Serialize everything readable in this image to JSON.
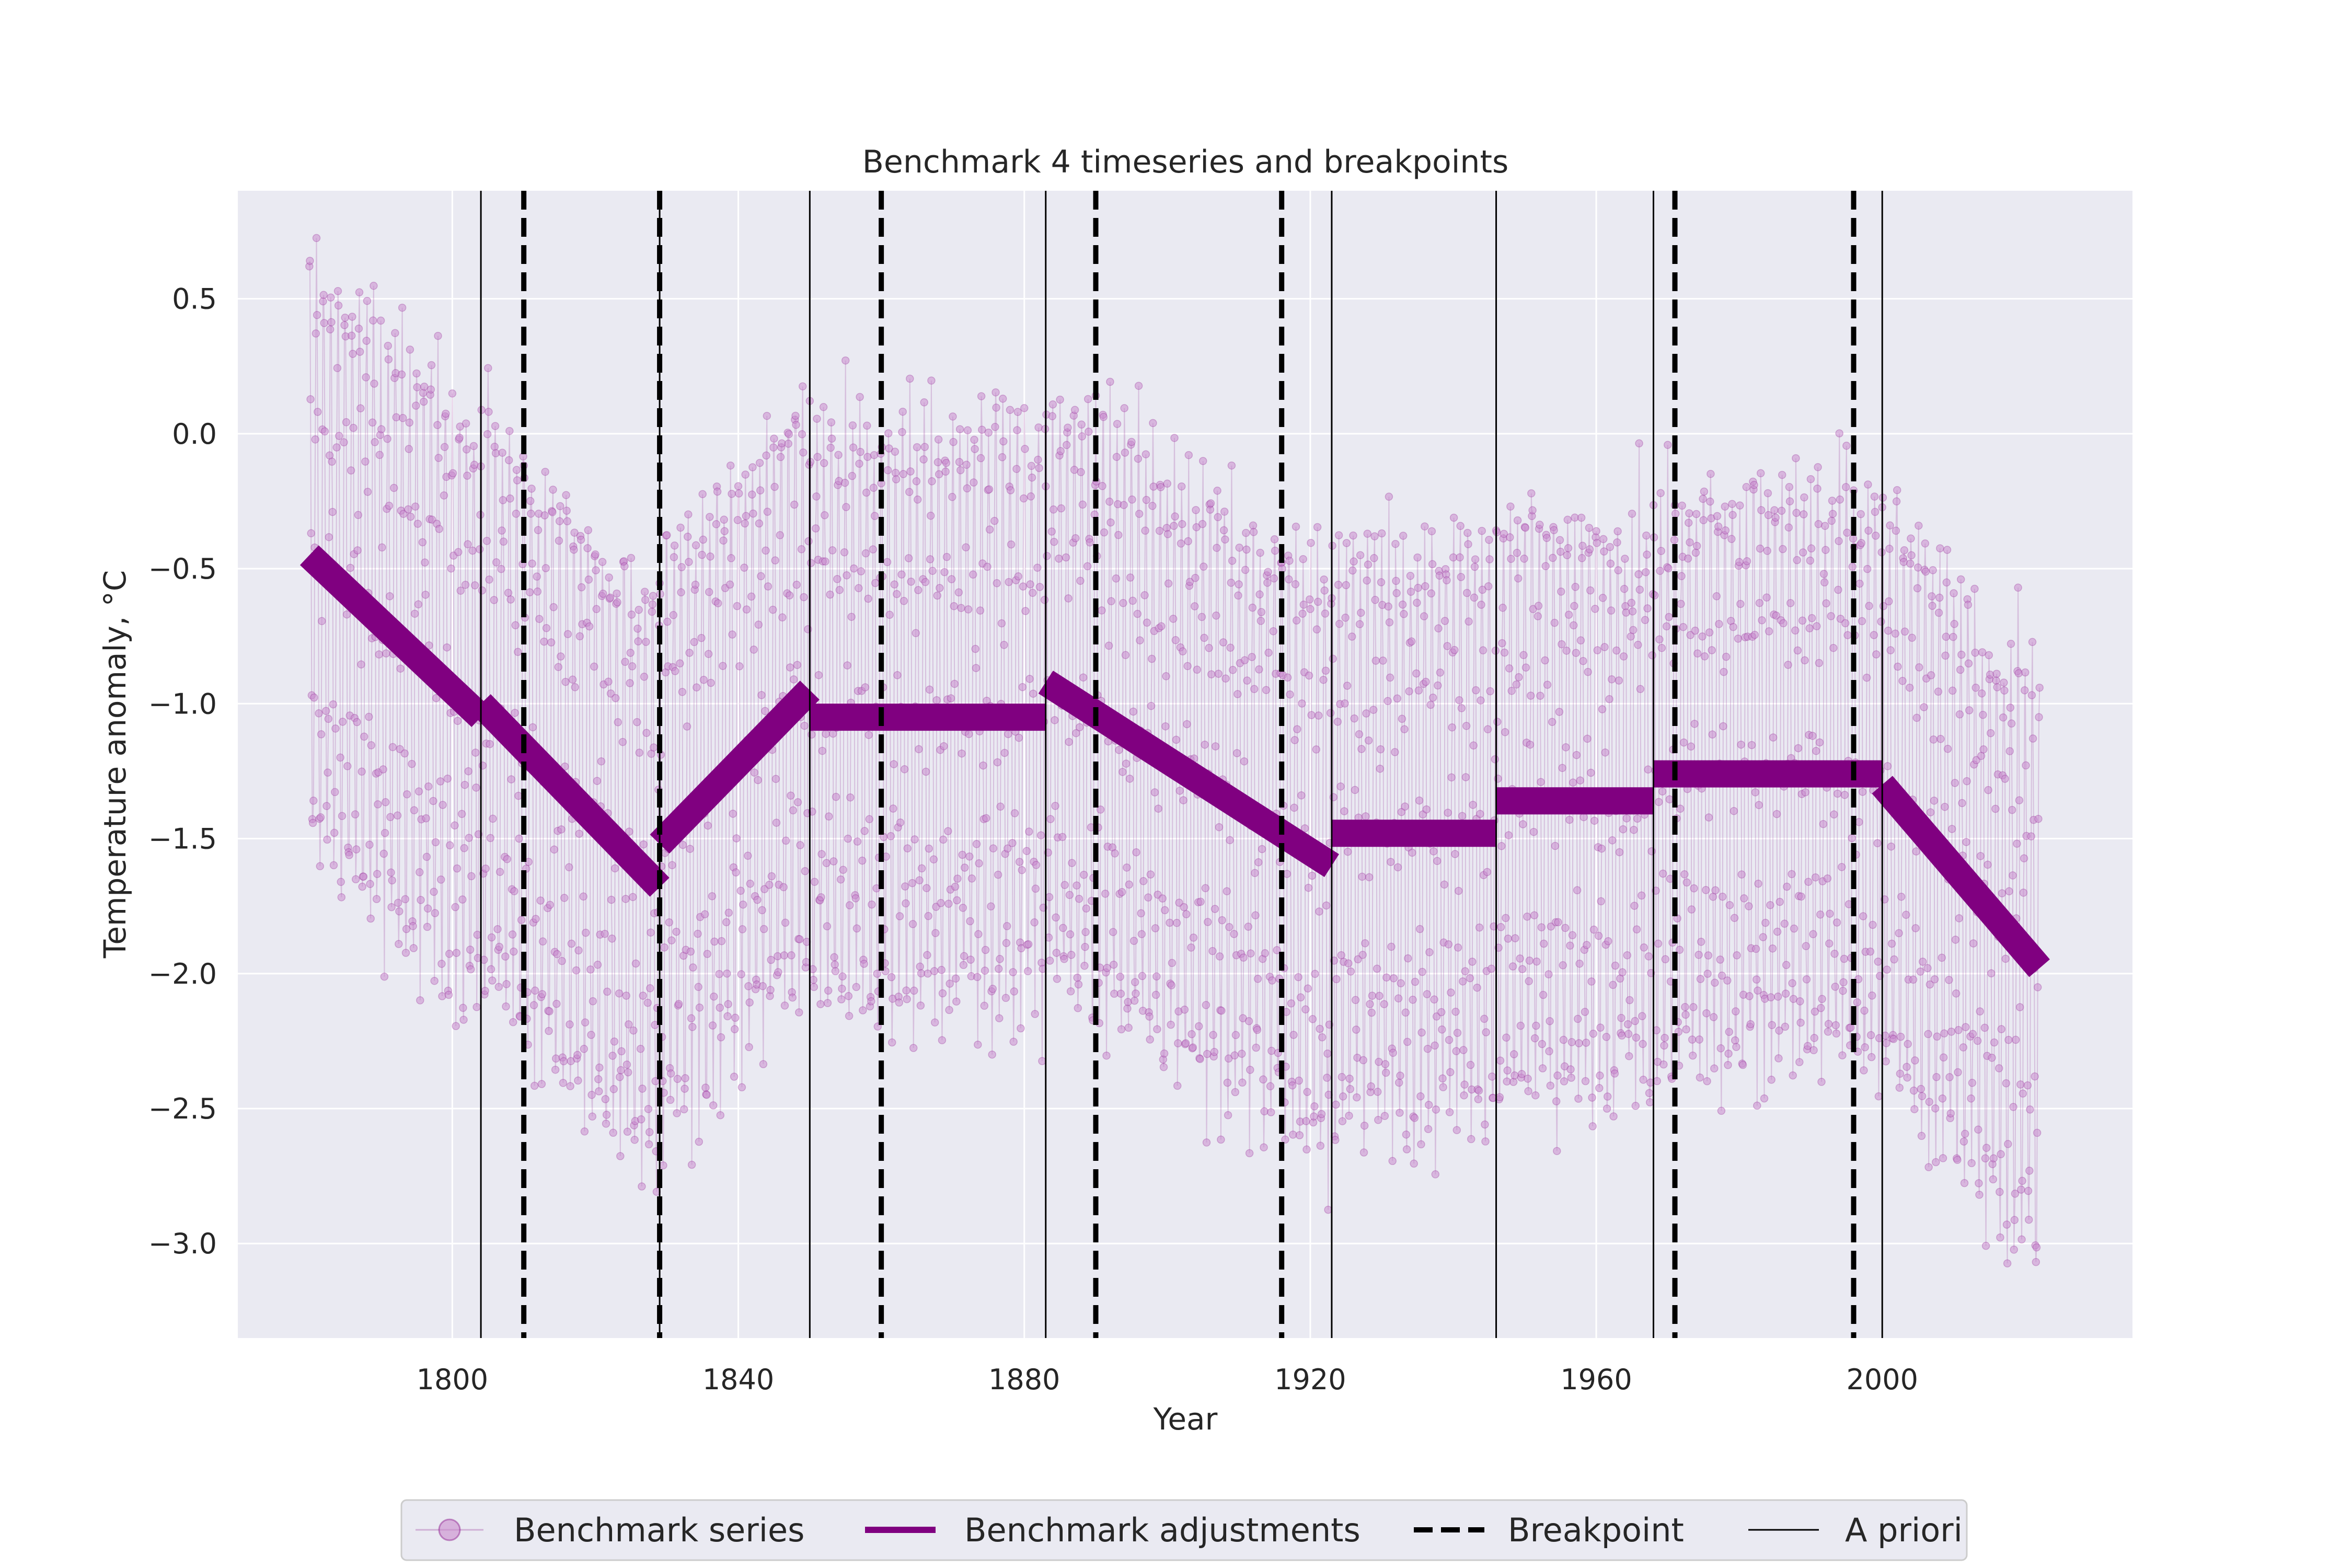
{
  "chart_data": {
    "type": "line",
    "title": "Benchmark 4 timeseries and breakpoints",
    "xlabel": "Year",
    "ylabel": "Temperature anomaly, °C",
    "xlim": [
      1770,
      2035
    ],
    "ylim": [
      -3.35,
      0.9
    ],
    "x_ticks": [
      1800,
      1840,
      1880,
      1920,
      1960,
      2000
    ],
    "y_ticks": [
      0.5,
      0.0,
      -0.5,
      -1.0,
      -1.5,
      -2.0,
      -2.5,
      -3.0
    ],
    "y_tick_labels": [
      "0.5",
      "0.0",
      "−0.5",
      "−1.0",
      "−1.5",
      "−2.0",
      "−2.5",
      "−3.0"
    ],
    "grid": true,
    "legend_position": "bottom-center",
    "series_color": "#800080",
    "point_color": "#c98bcd",
    "legend": [
      {
        "label": "Benchmark series",
        "style": "marker-line"
      },
      {
        "label": "Benchmark adjustments",
        "style": "thick-line"
      },
      {
        "label": "Breakpoint",
        "style": "dashed-line"
      },
      {
        "label": "A priori",
        "style": "thin-line"
      }
    ],
    "breakpoints": [
      1810,
      1829,
      1860,
      1890,
      1916,
      1971,
      1996
    ],
    "a_priori": [
      1804,
      1829,
      1850,
      1883,
      1923,
      1946,
      1968,
      2000
    ],
    "benchmark_series": {
      "start": 1780,
      "end": 2022,
      "seasonal_amplitude": 1.05,
      "noise": 0.18
    },
    "benchmark_adjustments": [
      {
        "x": [
          1780,
          1804
        ],
        "y": [
          -0.45,
          -1.05
        ]
      },
      {
        "x": [
          1804,
          1829
        ],
        "y": [
          -1.0,
          -1.68
        ]
      },
      {
        "x": [
          1829,
          1850
        ],
        "y": [
          -1.52,
          -0.95
        ]
      },
      {
        "x": [
          1850,
          1883
        ],
        "y": [
          -1.05,
          -1.05
        ]
      },
      {
        "x": [
          1883,
          1923
        ],
        "y": [
          -0.92,
          -1.6
        ]
      },
      {
        "x": [
          1923,
          1946
        ],
        "y": [
          -1.48,
          -1.48
        ]
      },
      {
        "x": [
          1946,
          1968
        ],
        "y": [
          -1.36,
          -1.36
        ]
      },
      {
        "x": [
          1968,
          2000
        ],
        "y": [
          -1.26,
          -1.26
        ]
      },
      {
        "x": [
          2000,
          2022
        ],
        "y": [
          -1.3,
          -1.98
        ]
      }
    ]
  }
}
